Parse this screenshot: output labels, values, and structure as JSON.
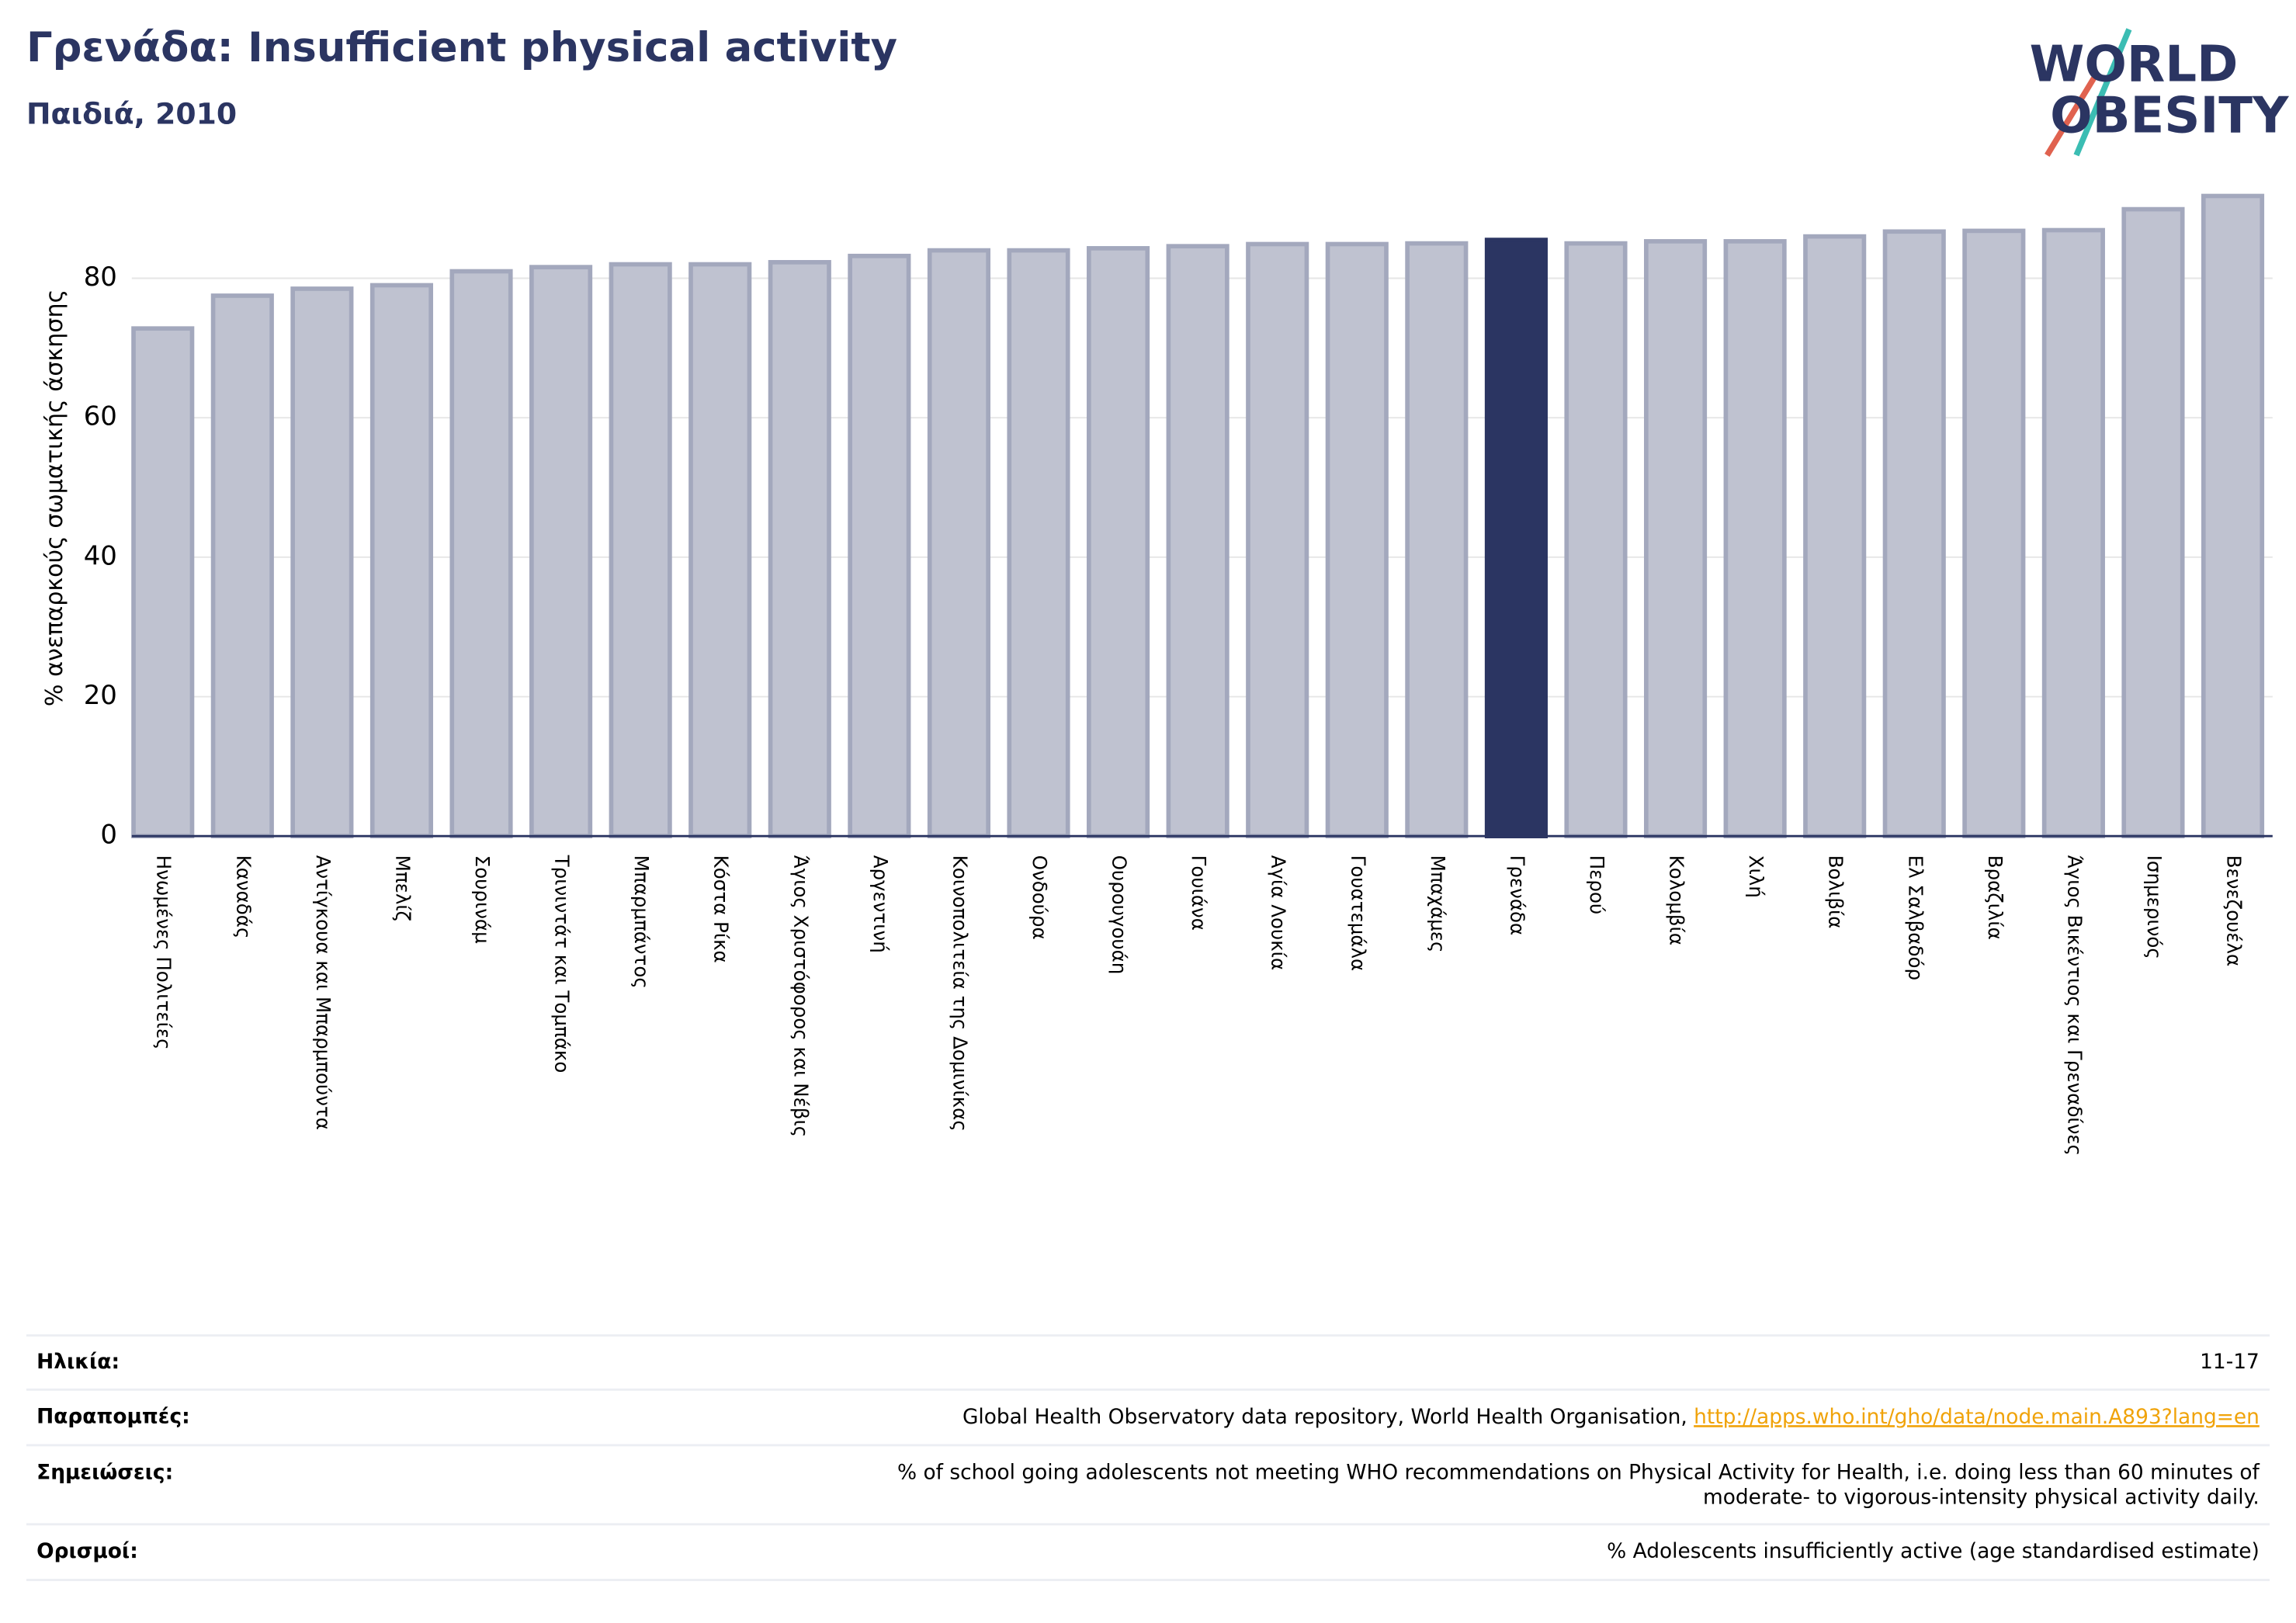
{
  "chart_data": {
    "type": "bar",
    "title": "Γρενάδα: Insufficient physical activity",
    "subtitle": "Παιδιά, 2010",
    "ylabel": "% ανεπαρκούς σωματικής άσκησης",
    "categories": [
      "Ηνωμένες Πολιτείες",
      "Καναδάς",
      "Αντίγκουα και Μπαρμπούντα",
      "Μπελίζ",
      "Σουρινάμ",
      "Τρινιντάτ και Τομπάκο",
      "Μπαρμπάντος",
      "Κόστα Ρίκα",
      "Άγιος Χριστόφορος και Νέβις",
      "Αργεντινή",
      "Κοινοπολιτεία της Δομινίκας",
      "Ονδούρα",
      "Ουρουγουάη",
      "Γουιάνα",
      "Αγία Λουκία",
      "Γουατεμάλα",
      "Μπαχάμες",
      "Γρενάδα",
      "Περού",
      "Κολομβία",
      "Χιλή",
      "Βολιβία",
      "Ελ Σαλβαδόρ",
      "Βραζιλία",
      "Άγιος Βικέντιος και Γρεναδίνες",
      "Ισημερινός",
      "Βενεζουέλα"
    ],
    "values": [
      72.8,
      77.5,
      78.5,
      79,
      81,
      81.6,
      82,
      82,
      82.3,
      83.2,
      84,
      84,
      84.3,
      84.6,
      84.9,
      84.9,
      85,
      85.5,
      85,
      85.3,
      85.3,
      86,
      86.7,
      86.8,
      86.9,
      89.9,
      91.8
    ],
    "color": "#bfc2d0",
    "highlight": "Γρενάδα",
    "highlight_color": "#2b3562",
    "ylim": [
      0,
      95
    ],
    "yticks": [
      0,
      20,
      40,
      60,
      80
    ],
    "grid": true
  },
  "logo": {
    "lines": [
      "WORLD",
      "OBESITY"
    ]
  },
  "footer": {
    "rows": [
      {
        "label": "Ηλικία:",
        "value": [
          "11-17"
        ]
      },
      {
        "label": "Παραπομπές:",
        "value": [
          "Global Health Observatory data repository, World Health Organisation, "
        ],
        "link": "http://apps.who.int/gho/data/node.main.A893?lang=en"
      },
      {
        "label": "Σημειώσεις:",
        "value": [
          "% of school going adolescents not meeting WHO recommendations on Physical Activity for Health, i.e. doing less than 60 minutes of",
          "moderate- to vigorous-intensity physical activity daily."
        ]
      },
      {
        "label": "Ορισμοί:",
        "value": [
          "% Adolescents insufficiently active (age standardised estimate)"
        ]
      }
    ]
  }
}
